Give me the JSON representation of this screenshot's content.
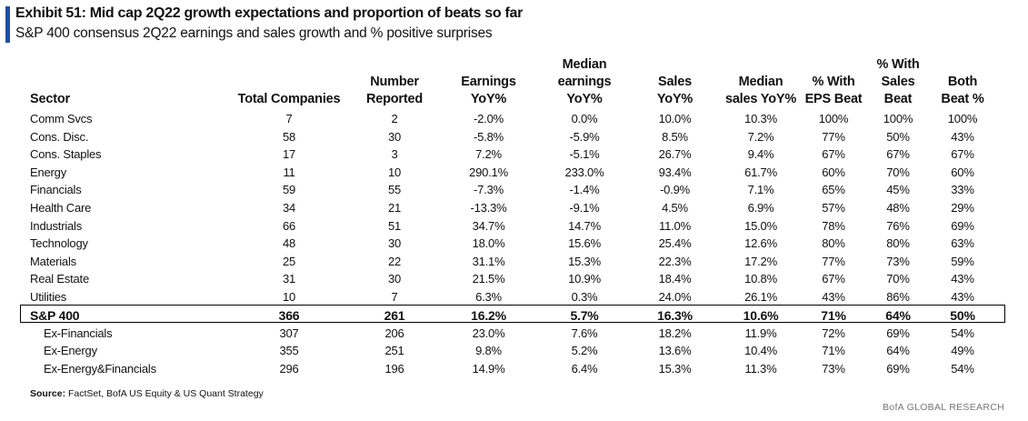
{
  "header": {
    "title": "Exhibit 51: Mid cap 2Q22 growth expectations and proportion of beats so far",
    "subtitle": "S&P 400 consensus 2Q22 earnings and sales growth and % positive surprises"
  },
  "table": {
    "columns": {
      "sector": [
        "Sector"
      ],
      "total": [
        "Total Companies"
      ],
      "reported": [
        "Number",
        "Reported"
      ],
      "eps_yoy": [
        "Earnings",
        "YoY%"
      ],
      "med_eps": [
        "Median",
        "earnings",
        "YoY%"
      ],
      "sales_yoy": [
        "Sales",
        "YoY%"
      ],
      "med_sales": [
        "Median",
        "sales YoY%"
      ],
      "eps_beat": [
        "% With",
        "EPS Beat"
      ],
      "sales_beat": [
        "% With",
        "Sales",
        "Beat"
      ],
      "both_beat": [
        "Both",
        "Beat %"
      ]
    },
    "rows": [
      [
        "Comm Svcs",
        "7",
        "2",
        "-2.0%",
        "0.0%",
        "10.0%",
        "10.3%",
        "100%",
        "100%",
        "100%"
      ],
      [
        "Cons. Disc.",
        "58",
        "30",
        "-5.8%",
        "-5.9%",
        "8.5%",
        "7.2%",
        "77%",
        "50%",
        "43%"
      ],
      [
        "Cons. Staples",
        "17",
        "3",
        "7.2%",
        "-5.1%",
        "26.7%",
        "9.4%",
        "67%",
        "67%",
        "67%"
      ],
      [
        "Energy",
        "11",
        "10",
        "290.1%",
        "233.0%",
        "93.4%",
        "61.7%",
        "60%",
        "70%",
        "60%"
      ],
      [
        "Financials",
        "59",
        "55",
        "-7.3%",
        "-1.4%",
        "-0.9%",
        "7.1%",
        "65%",
        "45%",
        "33%"
      ],
      [
        "Health Care",
        "34",
        "21",
        "-13.3%",
        "-9.1%",
        "4.5%",
        "6.9%",
        "57%",
        "48%",
        "29%"
      ],
      [
        "Industrials",
        "66",
        "51",
        "34.7%",
        "14.7%",
        "11.0%",
        "15.0%",
        "78%",
        "76%",
        "69%"
      ],
      [
        "Technology",
        "48",
        "30",
        "18.0%",
        "15.6%",
        "25.4%",
        "12.6%",
        "80%",
        "80%",
        "63%"
      ],
      [
        "Materials",
        "25",
        "22",
        "31.1%",
        "15.3%",
        "22.3%",
        "17.2%",
        "77%",
        "73%",
        "59%"
      ],
      [
        "Real Estate",
        "31",
        "30",
        "21.5%",
        "10.9%",
        "18.4%",
        "10.8%",
        "67%",
        "70%",
        "43%"
      ],
      [
        "Utilities",
        "10",
        "7",
        "6.3%",
        "0.3%",
        "24.0%",
        "26.1%",
        "43%",
        "86%",
        "43%"
      ]
    ],
    "total": [
      "S&P 400",
      "366",
      "261",
      "16.2%",
      "5.7%",
      "16.3%",
      "10.6%",
      "71%",
      "64%",
      "50%"
    ],
    "subrows": [
      [
        "Ex-Financials",
        "307",
        "206",
        "23.0%",
        "7.6%",
        "18.2%",
        "11.9%",
        "72%",
        "69%",
        "54%"
      ],
      [
        "Ex-Energy",
        "355",
        "251",
        "9.8%",
        "5.2%",
        "13.6%",
        "10.4%",
        "71%",
        "64%",
        "49%"
      ],
      [
        "Ex-Energy&Financials",
        "296",
        "196",
        "14.9%",
        "6.4%",
        "15.3%",
        "11.3%",
        "73%",
        "69%",
        "54%"
      ]
    ]
  },
  "footer": {
    "source_label": "Source:",
    "source_text": " FactSet, BofA US Equity & US Quant Strategy",
    "brand": "BofA GLOBAL RESEARCH"
  },
  "colors": {
    "accent": "#1f4ea3",
    "text": "#111111",
    "brand_text": "#777777"
  }
}
